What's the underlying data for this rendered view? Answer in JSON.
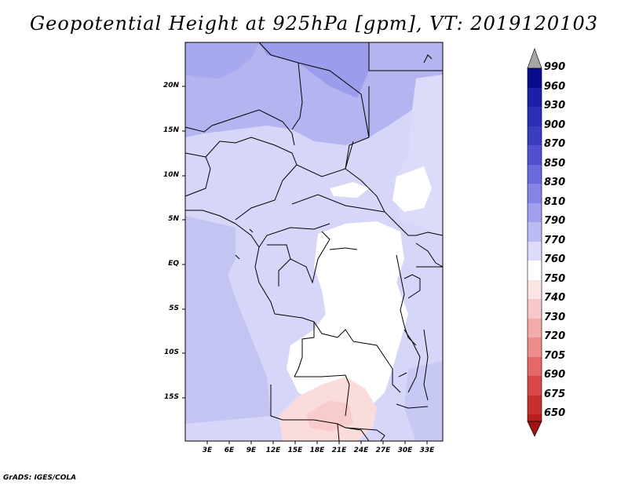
{
  "title": "Geopotential Height at 925hPa [gpm], VT: 2019120103",
  "footer": "GrADS: IGES/COLA",
  "map": {
    "latitude_labels": [
      "20N",
      "15N",
      "10N",
      "5N",
      "EQ",
      "5S",
      "10S",
      "15S"
    ],
    "longitude_labels": [
      "3E",
      "6E",
      "9E",
      "12E",
      "15E",
      "18E",
      "21E",
      "24E",
      "27E",
      "30E",
      "33E"
    ]
  },
  "colorbar": {
    "levels": [
      "990",
      "960",
      "930",
      "900",
      "870",
      "850",
      "830",
      "810",
      "790",
      "770",
      "760",
      "750",
      "740",
      "730",
      "720",
      "705",
      "690",
      "675",
      "650"
    ],
    "colors": {
      "over": "#a6a6a6",
      "b0": "#0a0a8c",
      "b1": "#1e1ea6",
      "b2": "#2d2db4",
      "b3": "#3c3cc0",
      "b4": "#5050d0",
      "b5": "#6a6adc",
      "b6": "#8484e6",
      "b7": "#a0a0ee",
      "b8": "#bcbcf5",
      "b9": "#dcdcfa",
      "b10": "#ffffff",
      "b11": "#fde4e4",
      "b12": "#f8c8c8",
      "b13": "#f2aaaa",
      "b14": "#ec8c8c",
      "b15": "#e46868",
      "b16": "#d84848",
      "b17": "#c83030",
      "b18": "#b81e1e",
      "under": "#a51010"
    }
  }
}
